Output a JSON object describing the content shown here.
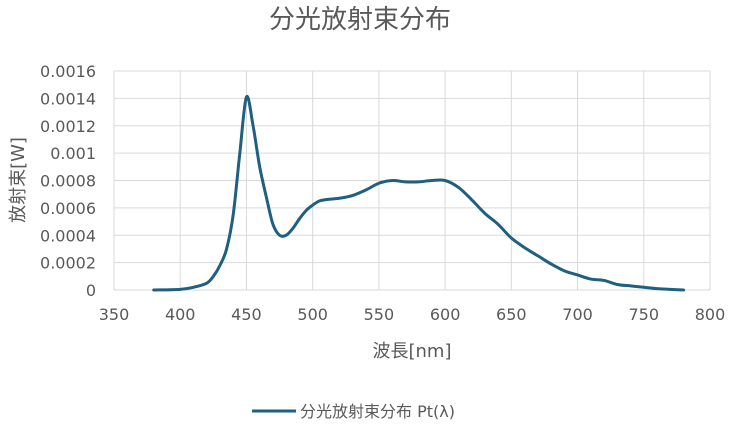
{
  "chart_data": {
    "type": "line",
    "title": "分光放射束分布",
    "xlabel": "波長[nm]",
    "ylabel": "放射束[W]",
    "xlim": [
      350,
      800
    ],
    "ylim": [
      0,
      0.0016
    ],
    "x_ticks": [
      "350",
      "400",
      "450",
      "500",
      "550",
      "600",
      "650",
      "700",
      "750",
      "800"
    ],
    "y_ticks": [
      "0",
      "0.0002",
      "0.0004",
      "0.0006",
      "0.0008",
      "0.001",
      "0.0012",
      "0.0014",
      "0.0016"
    ],
    "grid": true,
    "legend": "bottom",
    "line_color": "#1f5f7f",
    "series": [
      {
        "name": "分光放射束分布 Pt(λ)",
        "x": [
          380,
          400,
          410,
          420,
          425,
          430,
          435,
          440,
          445,
          450,
          455,
          460,
          465,
          470,
          475,
          480,
          485,
          490,
          495,
          500,
          505,
          510,
          520,
          530,
          540,
          550,
          560,
          570,
          580,
          590,
          600,
          610,
          620,
          630,
          640,
          650,
          660,
          670,
          680,
          690,
          700,
          710,
          720,
          730,
          740,
          750,
          760,
          770,
          780
        ],
        "y": [
          0,
          5e-06,
          2e-05,
          5e-05,
          0.0001,
          0.00018,
          0.0003,
          0.00055,
          0.001,
          0.00141,
          0.0012,
          0.0009,
          0.00068,
          0.00048,
          0.0004,
          0.0004,
          0.00045,
          0.00052,
          0.00058,
          0.00062,
          0.00065,
          0.00066,
          0.00067,
          0.00069,
          0.00073,
          0.00078,
          0.0008,
          0.00079,
          0.00079,
          0.0008,
          0.0008,
          0.00075,
          0.00066,
          0.00056,
          0.00048,
          0.00038,
          0.00031,
          0.00025,
          0.00019,
          0.00014,
          0.00011,
          8e-05,
          7e-05,
          4e-05,
          3e-05,
          2e-05,
          1e-05,
          5e-06,
          0
        ]
      }
    ]
  }
}
